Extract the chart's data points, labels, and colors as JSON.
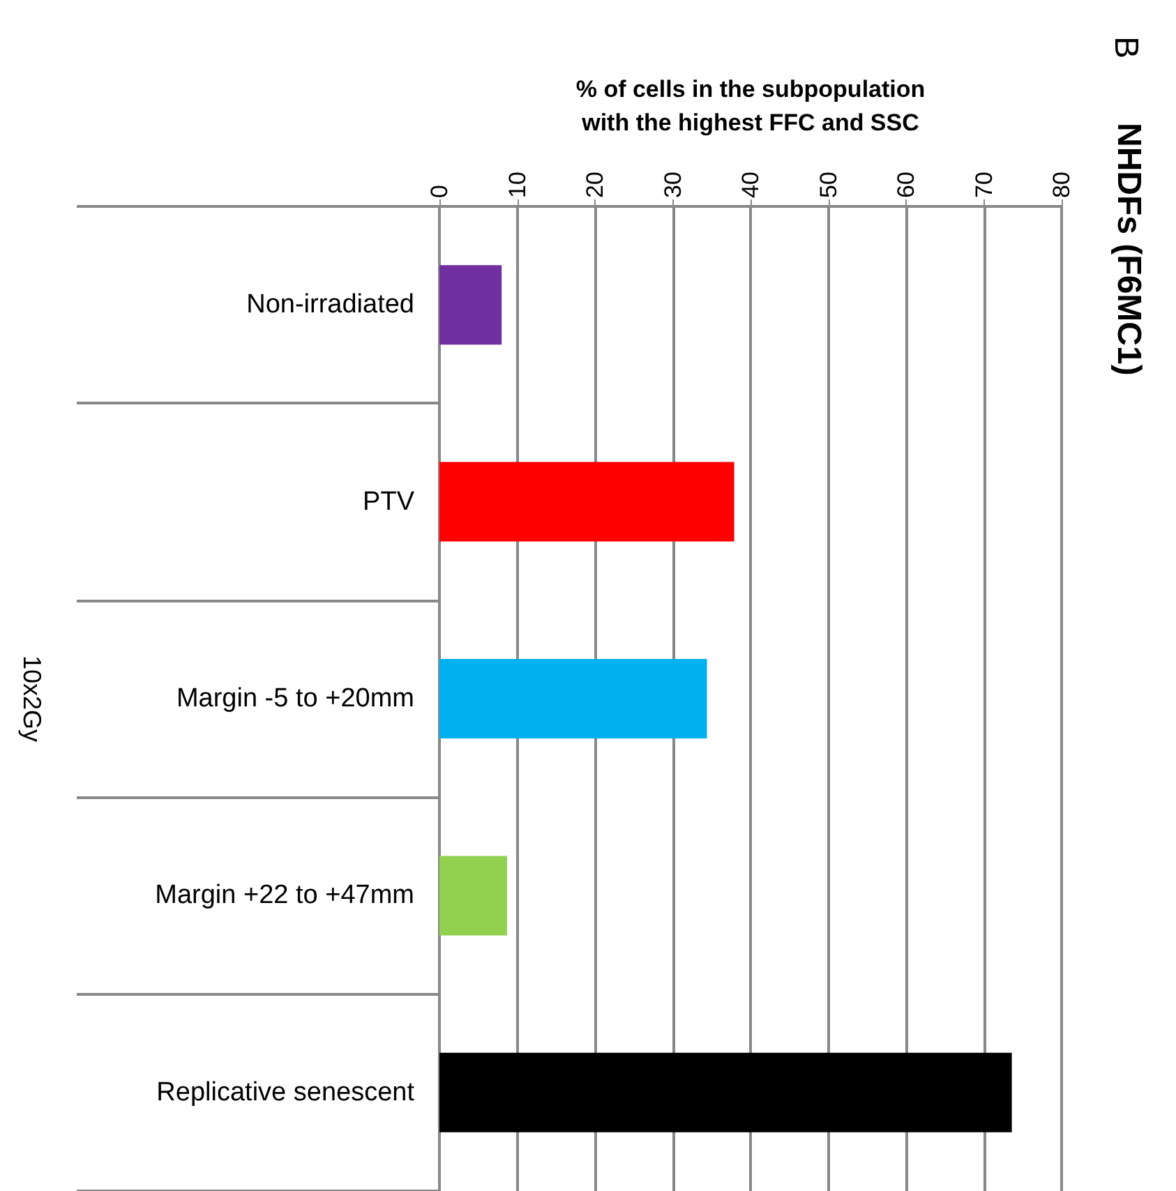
{
  "chart_data": {
    "type": "bar",
    "orientation": "horizontal",
    "title": "NHDFs (F6MC1)",
    "xlabel": "% of cells in the subpopulation\nwith the highest FFC and SSC",
    "categories": [
      "Non-irradiated",
      "PTV",
      "Margin -5 to +20mm",
      "Margin +22 to +47mm",
      "Replicative senescent"
    ],
    "values": [
      8.0,
      37.9,
      34.4,
      8.7,
      73.6
    ],
    "colors": [
      "#7030a0",
      "#ff0000",
      "#00b0f0",
      "#92d050",
      "#000000"
    ],
    "xlim": [
      0,
      80
    ],
    "xticks": [
      0,
      10,
      20,
      30,
      40,
      50,
      60,
      70,
      80
    ],
    "grid": "x",
    "annotations": [
      "B",
      "10x2Gy"
    ]
  }
}
